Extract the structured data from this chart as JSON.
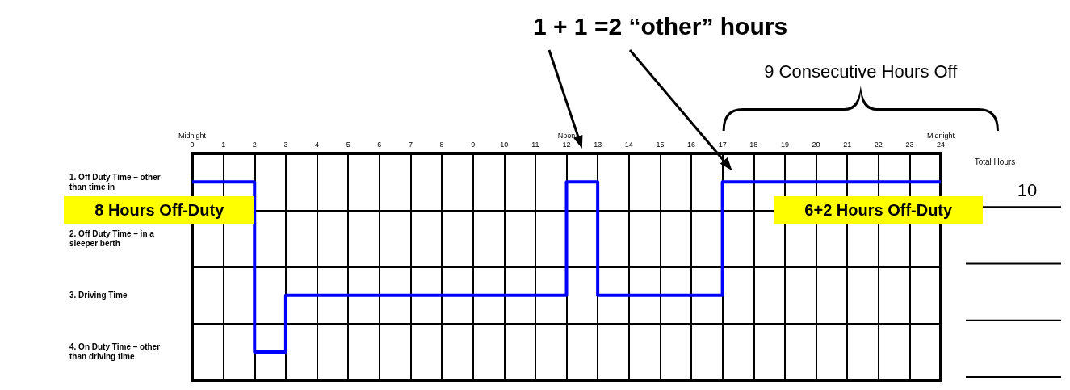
{
  "chart_data": {
    "type": "step",
    "title": "1 + 1 =2 “other” hours",
    "x": [
      0,
      2,
      3,
      12,
      13,
      17,
      24
    ],
    "series": [
      {
        "color": "#0000ff",
        "values": [
          1,
          4,
          3,
          1,
          3,
          1,
          1
        ]
      }
    ],
    "xlim": [
      0,
      24
    ],
    "xticks": [
      {
        "value": 0,
        "label": "Midnight\n0"
      },
      1,
      2,
      3,
      4,
      5,
      6,
      7,
      8,
      9,
      10,
      11,
      {
        "value": 12,
        "label": "Noon\n12"
      },
      13,
      14,
      15,
      16,
      17,
      18,
      19,
      20,
      21,
      22,
      23,
      {
        "value": 24,
        "label": "Midnight\n24"
      }
    ],
    "ylim": [
      4.5,
      0.5
    ],
    "yticks": [
      {
        "value": 1,
        "label": "1. Off Duty Time – other than time in"
      },
      {
        "value": 2,
        "label": "2. Off Duty Time – in a sleeper berth"
      },
      {
        "value": 3,
        "label": "3. Driving Time"
      },
      {
        "value": 4,
        "label": "4. On Duty Time – other than driving time"
      }
    ],
    "grid": true,
    "annotations": [
      {
        "text": "8 Hours Off-Duty",
        "x": 2,
        "y": 1
      },
      {
        "text": "6+2 Hours Off-Duty",
        "x": 22,
        "y": 1
      },
      "9 Consecutive Hours Off",
      "Total Hours",
      "10"
    ]
  }
}
